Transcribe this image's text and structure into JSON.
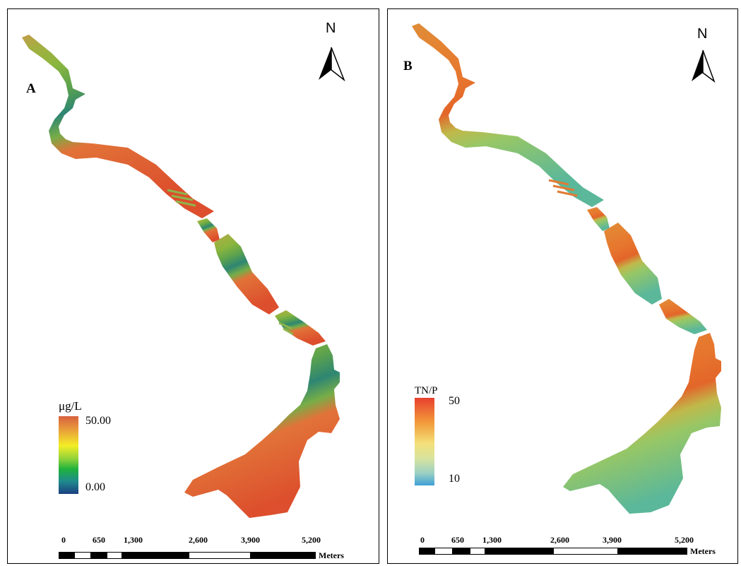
{
  "panels": [
    {
      "id": "A",
      "letter": "A",
      "north_label": "N",
      "legend": {
        "title": "μg/L",
        "max_label": "50.00",
        "min_label": "0.00",
        "colors": [
          "#d9603f",
          "#e9a03a",
          "#f3ee26",
          "#8fd23a",
          "#1fb23c",
          "#1f8a8e",
          "#1a3f80"
        ]
      },
      "scale_bar": {
        "ticks": [
          "0",
          "650",
          "1,300",
          "2,600",
          "3,900",
          "5,200"
        ],
        "unit": "Meters"
      }
    },
    {
      "id": "B",
      "letter": "B",
      "north_label": "N",
      "legend": {
        "title": "TN/P",
        "max_label": "50",
        "min_label": "10",
        "colors": [
          "#e8402e",
          "#f29a3a",
          "#f4e07a",
          "#d6e3a0",
          "#9bd0c4",
          "#3f9fd6"
        ]
      },
      "scale_bar": {
        "ticks": [
          "0",
          "650",
          "1,300",
          "2,600",
          "3,900",
          "5,200"
        ],
        "unit": "Meters"
      }
    }
  ]
}
